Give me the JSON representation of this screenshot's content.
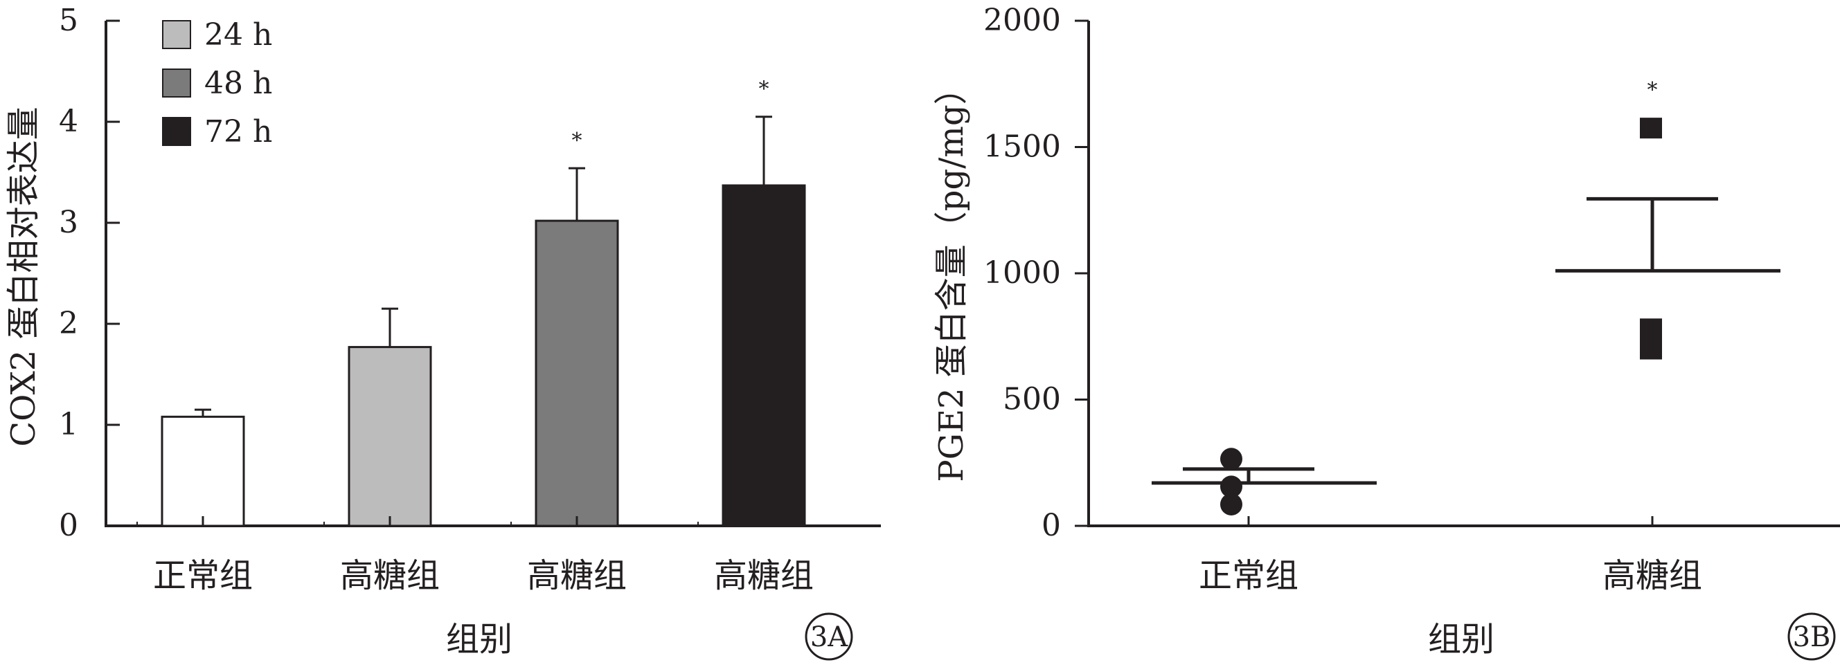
{
  "chart_data": [
    {
      "panel_label": "3A",
      "type": "bar",
      "ylabel": "COX2 蛋白相对表达量",
      "xlabel": "组别",
      "ylim": [
        0,
        5
      ],
      "yticks": [
        "0",
        "1",
        "2",
        "3",
        "4",
        "5"
      ],
      "legend": {
        "placement": "top-left",
        "entries": [
          {
            "label": "24 h",
            "color": "#bcbcbc"
          },
          {
            "label": "48 h",
            "color": "#7b7b7b"
          },
          {
            "label": "72 h",
            "color": "#231f20"
          }
        ]
      },
      "bars": [
        {
          "category": "正常组",
          "value": 1.08,
          "error": 0.07,
          "color": "#ffffff",
          "significance": ""
        },
        {
          "category": "高糖组",
          "value": 1.77,
          "error": 0.38,
          "color": "#bcbcbc",
          "significance": ""
        },
        {
          "category": "高糖组",
          "value": 3.02,
          "error": 0.52,
          "color": "#7b7b7b",
          "significance": "*"
        },
        {
          "category": "高糖组",
          "value": 3.37,
          "error": 0.68,
          "color": "#231f20",
          "significance": "*"
        }
      ]
    },
    {
      "panel_label": "3B",
      "type": "scatter",
      "ylabel": "PGE2 蛋白含量（pg/mg）",
      "xlabel": "组别",
      "ylim": [
        0,
        2000
      ],
      "yticks": [
        "0",
        "500",
        "1000",
        "1500",
        "2000"
      ],
      "categories": [
        "正常组",
        "高糖组"
      ],
      "groups": [
        {
          "category": "正常组",
          "marker": "circle",
          "points": [
            265,
            155,
            85
          ],
          "mean": 170,
          "sem": 225,
          "significance": ""
        },
        {
          "category": "高糖组",
          "marker": "square",
          "points": [
            1575,
            780,
            700
          ],
          "mean": 1010,
          "sem": 1295,
          "significance": "*"
        }
      ]
    }
  ]
}
